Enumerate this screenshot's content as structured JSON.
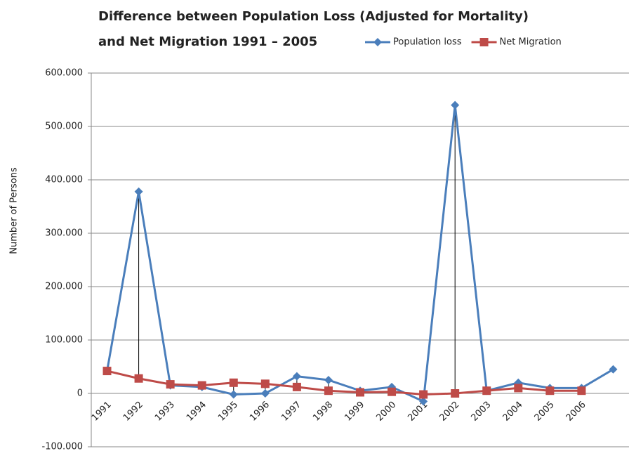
{
  "chart_data": {
    "type": "line",
    "title": "Difference between Population Loss (Adjusted for Mortality) and Net Migration 1991 – 2005",
    "y_label": "Number of Persons",
    "categories": [
      "1991",
      "1992",
      "1993",
      "1994",
      "1995",
      "1996",
      "1997",
      "1998",
      "1999",
      "2000",
      "2001",
      "2002",
      "2003",
      "2004",
      "2005",
      "2006",
      null
    ],
    "series": [
      {
        "name": "Population loss",
        "color": "#4a7ebb",
        "marker": "diamond",
        "values": [
          42000,
          378000,
          15000,
          12000,
          -2000,
          0,
          32000,
          25000,
          5000,
          12000,
          -15000,
          540000,
          5000,
          20000,
          10000,
          10000,
          45000
        ]
      },
      {
        "name": "Net Migration",
        "color": "#be4b48",
        "marker": "square",
        "values": [
          42000,
          28000,
          17000,
          15000,
          20000,
          18000,
          12000,
          5000,
          2000,
          3000,
          -2000,
          0,
          5000,
          10000,
          5000,
          5000,
          null
        ]
      }
    ],
    "ylim": [
      -100000,
      600000
    ],
    "yticks": [
      {
        "value": -100000,
        "label": "-100.000"
      },
      0,
      {
        "value": 100000,
        "label": "100.000"
      },
      {
        "value": 200000,
        "label": "200.000"
      },
      {
        "value": 300000,
        "label": "300.000"
      },
      {
        "value": 400000,
        "label": "400.000"
      },
      {
        "value": 500000,
        "label": "500.000"
      },
      {
        "value": 600000,
        "label": "600.000"
      }
    ],
    "grid": true,
    "drop_lines": true,
    "legend": "top-right"
  }
}
